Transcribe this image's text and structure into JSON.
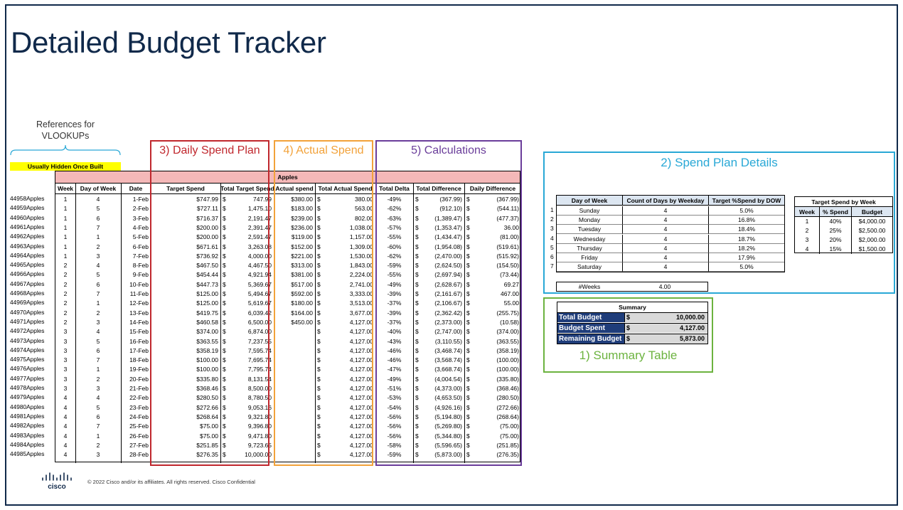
{
  "title": "Detailed Budget Tracker",
  "references_note": "References for VLOOKUPs",
  "hidden_note": "Usually Hidden Once Built",
  "sheet_band": "Apples",
  "columns": [
    "Week",
    "Day of Week",
    "Date",
    "Target Spend",
    "Total Target Spend",
    "Actual spend",
    "Total Actual Spend",
    "Total Delta",
    "Total Difference",
    "Daily Difference"
  ],
  "rows": [
    {
      "key": "44958Apples",
      "week": "1",
      "dow": "4",
      "date": "1-Feb",
      "target": "$747.99",
      "total_target": "747.99",
      "actual": "$380.00",
      "total_actual": "380.00",
      "delta": "-49%",
      "diff": "(367.99)",
      "daily": "(367.99)"
    },
    {
      "key": "44959Apples",
      "week": "1",
      "dow": "5",
      "date": "2-Feb",
      "target": "$727.11",
      "total_target": "1,475.10",
      "actual": "$183.00",
      "total_actual": "563.00",
      "delta": "-62%",
      "diff": "(912.10)",
      "daily": "(544.11)"
    },
    {
      "key": "44960Apples",
      "week": "1",
      "dow": "6",
      "date": "3-Feb",
      "target": "$716.37",
      "total_target": "2,191.47",
      "actual": "$239.00",
      "total_actual": "802.00",
      "delta": "-63%",
      "diff": "(1,389.47)",
      "daily": "(477.37)"
    },
    {
      "key": "44961Apples",
      "week": "1",
      "dow": "7",
      "date": "4-Feb",
      "target": "$200.00",
      "total_target": "2,391.47",
      "actual": "$236.00",
      "total_actual": "1,038.00",
      "delta": "-57%",
      "diff": "(1,353.47)",
      "daily": "36.00"
    },
    {
      "key": "44962Apples",
      "week": "1",
      "dow": "1",
      "date": "5-Feb",
      "target": "$200.00",
      "total_target": "2,591.47",
      "actual": "$119.00",
      "total_actual": "1,157.00",
      "delta": "-55%",
      "diff": "(1,434.47)",
      "daily": "(81.00)"
    },
    {
      "key": "44963Apples",
      "week": "1",
      "dow": "2",
      "date": "6-Feb",
      "target": "$671.61",
      "total_target": "3,263.08",
      "actual": "$152.00",
      "total_actual": "1,309.00",
      "delta": "-60%",
      "diff": "(1,954.08)",
      "daily": "(519.61)"
    },
    {
      "key": "44964Apples",
      "week": "1",
      "dow": "3",
      "date": "7-Feb",
      "target": "$736.92",
      "total_target": "4,000.00",
      "actual": "$221.00",
      "total_actual": "1,530.00",
      "delta": "-62%",
      "diff": "(2,470.00)",
      "daily": "(515.92)"
    },
    {
      "key": "44965Apples",
      "week": "2",
      "dow": "4",
      "date": "8-Feb",
      "target": "$467.50",
      "total_target": "4,467.50",
      "actual": "$313.00",
      "total_actual": "1,843.00",
      "delta": "-59%",
      "diff": "(2,624.50)",
      "daily": "(154.50)"
    },
    {
      "key": "44966Apples",
      "week": "2",
      "dow": "5",
      "date": "9-Feb",
      "target": "$454.44",
      "total_target": "4,921.94",
      "actual": "$381.00",
      "total_actual": "2,224.00",
      "delta": "-55%",
      "diff": "(2,697.94)",
      "daily": "(73.44)"
    },
    {
      "key": "44967Apples",
      "week": "2",
      "dow": "6",
      "date": "10-Feb",
      "target": "$447.73",
      "total_target": "5,369.67",
      "actual": "$517.00",
      "total_actual": "2,741.00",
      "delta": "-49%",
      "diff": "(2,628.67)",
      "daily": "69.27"
    },
    {
      "key": "44968Apples",
      "week": "2",
      "dow": "7",
      "date": "11-Feb",
      "target": "$125.00",
      "total_target": "5,494.67",
      "actual": "$592.00",
      "total_actual": "3,333.00",
      "delta": "-39%",
      "diff": "(2,161.67)",
      "daily": "467.00"
    },
    {
      "key": "44969Apples",
      "week": "2",
      "dow": "1",
      "date": "12-Feb",
      "target": "$125.00",
      "total_target": "5,619.67",
      "actual": "$180.00",
      "total_actual": "3,513.00",
      "delta": "-37%",
      "diff": "(2,106.67)",
      "daily": "55.00"
    },
    {
      "key": "44970Apples",
      "week": "2",
      "dow": "2",
      "date": "13-Feb",
      "target": "$419.75",
      "total_target": "6,039.42",
      "actual": "$164.00",
      "total_actual": "3,677.00",
      "delta": "-39%",
      "diff": "(2,362.42)",
      "daily": "(255.75)"
    },
    {
      "key": "44971Apples",
      "week": "2",
      "dow": "3",
      "date": "14-Feb",
      "target": "$460.58",
      "total_target": "6,500.00",
      "actual": "$450.00",
      "total_actual": "4,127.00",
      "delta": "-37%",
      "diff": "(2,373.00)",
      "daily": "(10.58)"
    },
    {
      "key": "44972Apples",
      "week": "3",
      "dow": "4",
      "date": "15-Feb",
      "target": "$374.00",
      "total_target": "6,874.00",
      "actual": "",
      "total_actual": "4,127.00",
      "delta": "-40%",
      "diff": "(2,747.00)",
      "daily": "(374.00)"
    },
    {
      "key": "44973Apples",
      "week": "3",
      "dow": "5",
      "date": "16-Feb",
      "target": "$363.55",
      "total_target": "7,237.55",
      "actual": "",
      "total_actual": "4,127.00",
      "delta": "-43%",
      "diff": "(3,110.55)",
      "daily": "(363.55)"
    },
    {
      "key": "44974Apples",
      "week": "3",
      "dow": "6",
      "date": "17-Feb",
      "target": "$358.19",
      "total_target": "7,595.74",
      "actual": "",
      "total_actual": "4,127.00",
      "delta": "-46%",
      "diff": "(3,468.74)",
      "daily": "(358.19)"
    },
    {
      "key": "44975Apples",
      "week": "3",
      "dow": "7",
      "date": "18-Feb",
      "target": "$100.00",
      "total_target": "7,695.74",
      "actual": "",
      "total_actual": "4,127.00",
      "delta": "-46%",
      "diff": "(3,568.74)",
      "daily": "(100.00)"
    },
    {
      "key": "44976Apples",
      "week": "3",
      "dow": "1",
      "date": "19-Feb",
      "target": "$100.00",
      "total_target": "7,795.74",
      "actual": "",
      "total_actual": "4,127.00",
      "delta": "-47%",
      "diff": "(3,668.74)",
      "daily": "(100.00)"
    },
    {
      "key": "44977Apples",
      "week": "3",
      "dow": "2",
      "date": "20-Feb",
      "target": "$335.80",
      "total_target": "8,131.54",
      "actual": "",
      "total_actual": "4,127.00",
      "delta": "-49%",
      "diff": "(4,004.54)",
      "daily": "(335.80)"
    },
    {
      "key": "44978Apples",
      "week": "3",
      "dow": "3",
      "date": "21-Feb",
      "target": "$368.46",
      "total_target": "8,500.00",
      "actual": "",
      "total_actual": "4,127.00",
      "delta": "-51%",
      "diff": "(4,373.00)",
      "daily": "(368.46)"
    },
    {
      "key": "44979Apples",
      "week": "4",
      "dow": "4",
      "date": "22-Feb",
      "target": "$280.50",
      "total_target": "8,780.50",
      "actual": "",
      "total_actual": "4,127.00",
      "delta": "-53%",
      "diff": "(4,653.50)",
      "daily": "(280.50)"
    },
    {
      "key": "44980Apples",
      "week": "4",
      "dow": "5",
      "date": "23-Feb",
      "target": "$272.66",
      "total_target": "9,053.16",
      "actual": "",
      "total_actual": "4,127.00",
      "delta": "-54%",
      "diff": "(4,926.16)",
      "daily": "(272.66)"
    },
    {
      "key": "44981Apples",
      "week": "4",
      "dow": "6",
      "date": "24-Feb",
      "target": "$268.64",
      "total_target": "9,321.80",
      "actual": "",
      "total_actual": "4,127.00",
      "delta": "-56%",
      "diff": "(5,194.80)",
      "daily": "(268.64)"
    },
    {
      "key": "44982Apples",
      "week": "4",
      "dow": "7",
      "date": "25-Feb",
      "target": "$75.00",
      "total_target": "9,396.80",
      "actual": "",
      "total_actual": "4,127.00",
      "delta": "-56%",
      "diff": "(5,269.80)",
      "daily": "(75.00)"
    },
    {
      "key": "44983Apples",
      "week": "4",
      "dow": "1",
      "date": "26-Feb",
      "target": "$75.00",
      "total_target": "9,471.80",
      "actual": "",
      "total_actual": "4,127.00",
      "delta": "-56%",
      "diff": "(5,344.80)",
      "daily": "(75.00)"
    },
    {
      "key": "44984Apples",
      "week": "4",
      "dow": "2",
      "date": "27-Feb",
      "target": "$251.85",
      "total_target": "9,723.65",
      "actual": "",
      "total_actual": "4,127.00",
      "delta": "-58%",
      "diff": "(5,596.65)",
      "daily": "(251.85)"
    },
    {
      "key": "44985Apples",
      "week": "4",
      "dow": "3",
      "date": "28-Feb",
      "target": "$276.35",
      "total_target": "10,000.00",
      "actual": "",
      "total_actual": "4,127.00",
      "delta": "-59%",
      "diff": "(5,873.00)",
      "daily": "(276.35)"
    }
  ],
  "currency_symbol": "$",
  "boxes": {
    "daily_spend_plan": {
      "label": "3) Daily Spend Plan",
      "color": "#c0272d"
    },
    "actual_spend": {
      "label": "4) Actual Spend",
      "color": "#f2a23a"
    },
    "calculations": {
      "label": "5) Calculations",
      "color": "#6a3d9a"
    },
    "spend_plan_details": {
      "label": "2) Spend Plan Details",
      "color": "#29a8d6"
    },
    "summary_table": {
      "label": "1) Summary Table",
      "color": "#6cb33f"
    }
  },
  "dow_table": {
    "headers": [
      "Day of Week",
      "Count of Days by Weekday",
      "Target %Spend by DOW"
    ],
    "rows": [
      {
        "idx": "1",
        "day": "Sunday",
        "count": "4",
        "pct": "5.0%"
      },
      {
        "idx": "2",
        "day": "Monday",
        "count": "4",
        "pct": "16.8%"
      },
      {
        "idx": "3",
        "day": "Tuesday",
        "count": "4",
        "pct": "18.4%"
      },
      {
        "idx": "4",
        "day": "Wednesday",
        "count": "4",
        "pct": "18.7%"
      },
      {
        "idx": "5",
        "day": "Thursday",
        "count": "4",
        "pct": "18.2%"
      },
      {
        "idx": "6",
        "day": "Friday",
        "count": "4",
        "pct": "17.9%"
      },
      {
        "idx": "7",
        "day": "Saturday",
        "count": "4",
        "pct": "5.0%"
      }
    ],
    "weeks_label": "#Weeks",
    "weeks_value": "4.00"
  },
  "week_table": {
    "title": "Target Spend by Week",
    "headers": [
      "Week",
      "% Spend",
      "Budget"
    ],
    "rows": [
      {
        "week": "1",
        "pct": "40%",
        "budget": "$4,000.00"
      },
      {
        "week": "2",
        "pct": "25%",
        "budget": "$2,500.00"
      },
      {
        "week": "3",
        "pct": "20%",
        "budget": "$2,000.00"
      },
      {
        "week": "4",
        "pct": "15%",
        "budget": "$1,500.00"
      }
    ]
  },
  "summary": {
    "title": "Summary",
    "rows": [
      {
        "label": "Total Budget",
        "value": "10,000.00"
      },
      {
        "label": "Budget Spent",
        "value": "4,127.00"
      },
      {
        "label": "Remaining Budget",
        "value": "5,873.00"
      }
    ]
  },
  "footer": {
    "logo_text": "cisco",
    "copyright": "© 2022  Cisco and/or its affiliates. All rights reserved.   Cisco Confidential"
  }
}
